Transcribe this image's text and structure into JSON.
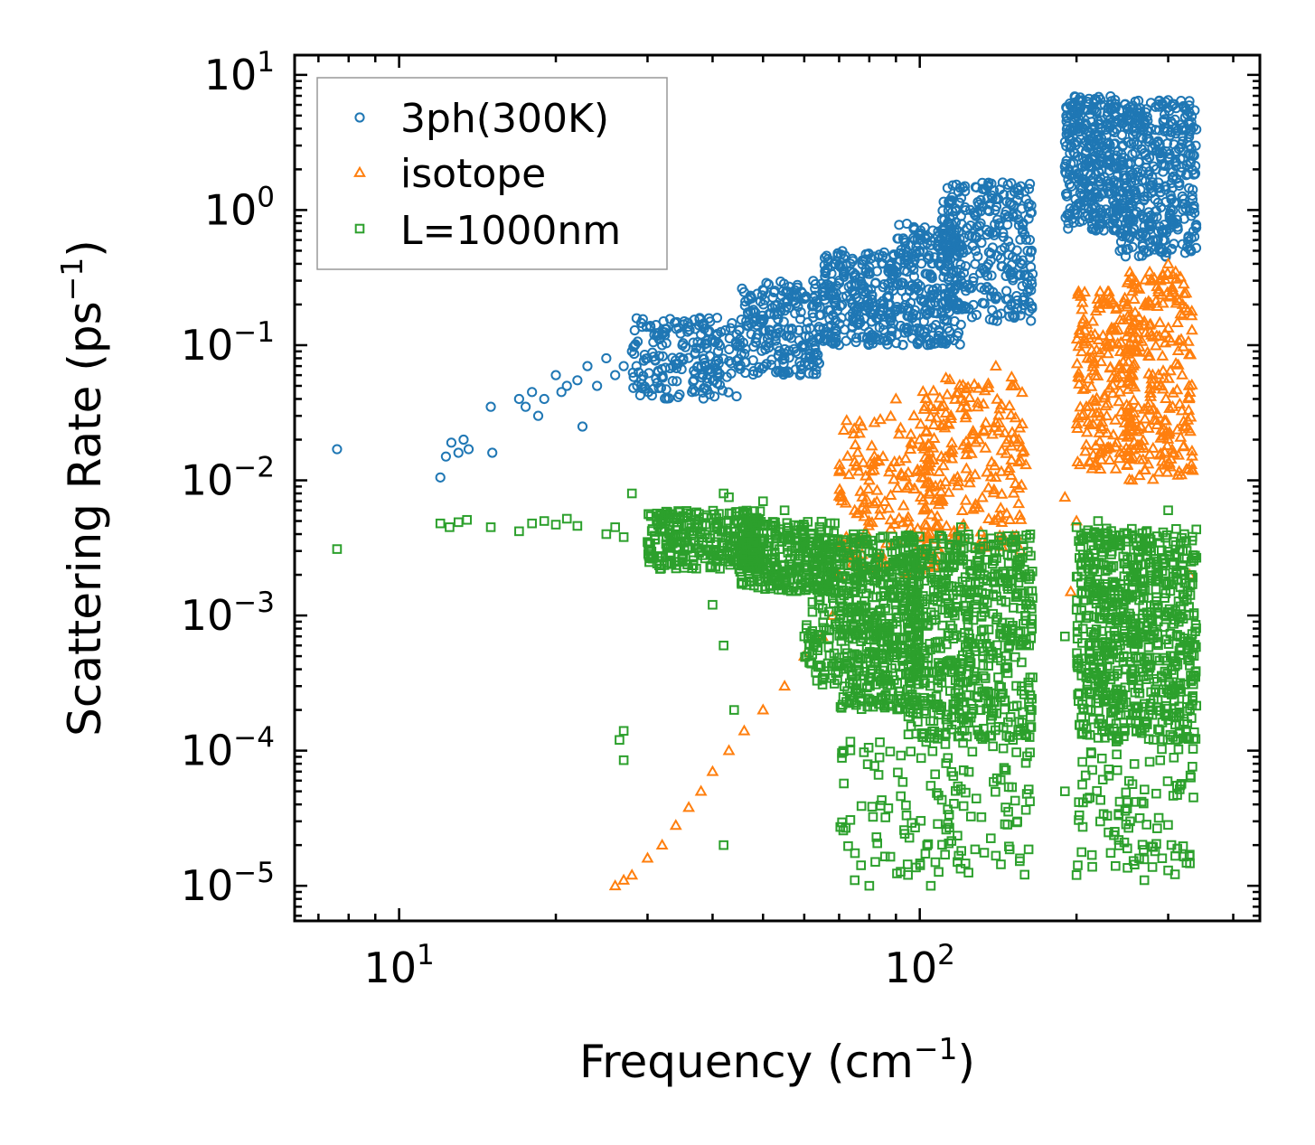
{
  "colors": {
    "3ph": "#1f77b4",
    "isotope": "#ff7f0e",
    "boundary": "#2ca02c",
    "axis": "#000000",
    "legend_border": "#999999"
  },
  "chart_data": {
    "type": "scatter",
    "xscale": "log",
    "yscale": "log",
    "xlim": [
      6.3,
      450
    ],
    "ylim": [
      5.5e-06,
      14
    ],
    "xlabel": "Frequency (cm",
    "xlabel_sup": "−1",
    "xlabel_end": ")",
    "ylabel": "Scattering Rate (ps",
    "ylabel_sup": "−1",
    "ylabel_end": ")",
    "x_ticks": [
      {
        "value": 10,
        "base": "10",
        "exp": "1"
      },
      {
        "value": 100,
        "base": "10",
        "exp": "2"
      }
    ],
    "y_ticks": [
      {
        "value": 10,
        "base": "10",
        "exp": "1"
      },
      {
        "value": 1,
        "base": "10",
        "exp": "0"
      },
      {
        "value": 0.1,
        "base": "10",
        "exp": "−1"
      },
      {
        "value": 0.01,
        "base": "10",
        "exp": "−2"
      },
      {
        "value": 0.001,
        "base": "10",
        "exp": "−3"
      },
      {
        "value": 0.0001,
        "base": "10",
        "exp": "−4"
      },
      {
        "value": 1e-05,
        "base": "10",
        "exp": "−5"
      }
    ],
    "legend_position": "top-left",
    "series": [
      {
        "name": "3ph(300K)",
        "marker": "circle",
        "color": "#1f77b4",
        "points": [
          [
            7.6,
            0.017
          ],
          [
            12,
            0.0105
          ],
          [
            12.3,
            0.015
          ],
          [
            12.6,
            0.019
          ],
          [
            13,
            0.016
          ],
          [
            13.3,
            0.02
          ],
          [
            13.6,
            0.017
          ],
          [
            15,
            0.035
          ],
          [
            15.1,
            0.016
          ],
          [
            17,
            0.04
          ],
          [
            17.5,
            0.035
          ],
          [
            18,
            0.045
          ],
          [
            18.5,
            0.03
          ],
          [
            19,
            0.04
          ],
          [
            20,
            0.06
          ],
          [
            20.5,
            0.045
          ],
          [
            21,
            0.05
          ],
          [
            22,
            0.055
          ],
          [
            22.5,
            0.025
          ],
          [
            23,
            0.07
          ],
          [
            24,
            0.05
          ],
          [
            25,
            0.08
          ],
          [
            26,
            0.06
          ],
          [
            27,
            0.07
          ],
          [
            28,
            0.09
          ],
          [
            30,
            0.08
          ],
          [
            32,
            0.1
          ],
          [
            35,
            0.1
          ],
          [
            38,
            0.12
          ],
          [
            40,
            0.11
          ],
          [
            45,
            0.13
          ],
          [
            50,
            0.15
          ],
          [
            55,
            0.18
          ],
          [
            60,
            0.22
          ],
          [
            65,
            0.25
          ],
          [
            70,
            0.3
          ],
          [
            75,
            0.33
          ],
          [
            80,
            0.35
          ],
          [
            85,
            0.4
          ],
          [
            90,
            0.38
          ],
          [
            95,
            0.45
          ],
          [
            100,
            0.5
          ],
          [
            105,
            0.55
          ],
          [
            110,
            0.6
          ],
          [
            115,
            0.7
          ],
          [
            120,
            0.9
          ],
          [
            125,
            1.0
          ],
          [
            130,
            1.1
          ],
          [
            135,
            1.0
          ],
          [
            140,
            1.2
          ],
          [
            145,
            1.3
          ],
          [
            150,
            1.1
          ],
          [
            155,
            1.4
          ],
          [
            160,
            1.2
          ],
          [
            190,
            2.1
          ],
          [
            195,
            2.2
          ],
          [
            200,
            5.0
          ],
          [
            205,
            6.5
          ],
          [
            210,
            5.5
          ],
          [
            220,
            3.5
          ],
          [
            230,
            2.5
          ],
          [
            240,
            1.8
          ],
          [
            250,
            1.5
          ],
          [
            260,
            1.3
          ],
          [
            270,
            1.2
          ],
          [
            280,
            1.6
          ],
          [
            290,
            2.5
          ],
          [
            300,
            6.5
          ],
          [
            310,
            4.0
          ],
          [
            320,
            3.5
          ],
          [
            330,
            3.0
          ]
        ],
        "bands": [
          {
            "xmin": 28,
            "xmax": 45,
            "ylo": 0.04,
            "yhi": 0.16,
            "n": 200
          },
          {
            "xmin": 45,
            "xmax": 65,
            "ylo": 0.06,
            "yhi": 0.3,
            "n": 220
          },
          {
            "xmin": 65,
            "xmax": 90,
            "ylo": 0.1,
            "yhi": 0.5,
            "n": 260
          },
          {
            "xmin": 90,
            "xmax": 120,
            "ylo": 0.1,
            "yhi": 0.8,
            "n": 260
          },
          {
            "xmin": 110,
            "xmax": 165,
            "ylo": 0.15,
            "yhi": 1.6,
            "n": 300
          },
          {
            "xmin": 190,
            "xmax": 240,
            "ylo": 0.7,
            "yhi": 7.0,
            "n": 320
          },
          {
            "xmin": 240,
            "xmax": 340,
            "ylo": 0.45,
            "yhi": 6.5,
            "n": 420
          }
        ]
      },
      {
        "name": "isotope",
        "marker": "triangle",
        "color": "#ff7f0e",
        "points": [
          [
            26,
            1e-05
          ],
          [
            27,
            1.1e-05
          ],
          [
            28,
            1.2e-05
          ],
          [
            30,
            1.6e-05
          ],
          [
            32,
            2e-05
          ],
          [
            34,
            2.8e-05
          ],
          [
            36,
            3.8e-05
          ],
          [
            38,
            5e-05
          ],
          [
            40,
            7e-05
          ],
          [
            43,
            0.0001
          ],
          [
            46,
            0.00014
          ],
          [
            50,
            0.0002
          ],
          [
            55,
            0.0003
          ],
          [
            60,
            0.0005
          ],
          [
            65,
            0.0007
          ],
          [
            68,
            0.001
          ],
          [
            70,
            0.002
          ],
          [
            75,
            0.006
          ],
          [
            80,
            0.01
          ],
          [
            85,
            0.015
          ],
          [
            90,
            0.04
          ],
          [
            100,
            0.02
          ],
          [
            105,
            0.035
          ],
          [
            110,
            0.015
          ],
          [
            120,
            0.04
          ],
          [
            130,
            0.02
          ],
          [
            140,
            0.07
          ],
          [
            150,
            0.05
          ],
          [
            155,
            0.02
          ],
          [
            190,
            0.0075
          ],
          [
            195,
            0.0015
          ],
          [
            200,
            0.005
          ],
          [
            205,
            0.03
          ],
          [
            210,
            0.08
          ],
          [
            215,
            0.15
          ],
          [
            230,
            0.1
          ],
          [
            250,
            0.2
          ],
          [
            270,
            0.15
          ],
          [
            290,
            0.3
          ],
          [
            300,
            0.4
          ],
          [
            310,
            0.35
          ],
          [
            320,
            0.2
          ],
          [
            330,
            0.002
          ]
        ],
        "bands": [
          {
            "xmin": 70,
            "xmax": 110,
            "ylo": 0.002,
            "yhi": 0.03,
            "n": 180
          },
          {
            "xmin": 100,
            "xmax": 160,
            "ylo": 0.003,
            "yhi": 0.06,
            "n": 200
          },
          {
            "xmin": 200,
            "xmax": 260,
            "ylo": 0.012,
            "yhi": 0.25,
            "n": 200
          },
          {
            "xmin": 250,
            "xmax": 335,
            "ylo": 0.01,
            "yhi": 0.35,
            "n": 240
          }
        ]
      },
      {
        "name": "L=1000nm",
        "marker": "square",
        "color": "#2ca02c",
        "points": [
          [
            7.6,
            0.0031
          ],
          [
            12,
            0.0048
          ],
          [
            12.5,
            0.0045
          ],
          [
            13,
            0.0049
          ],
          [
            13.5,
            0.0051
          ],
          [
            15,
            0.0045
          ],
          [
            17,
            0.0042
          ],
          [
            18,
            0.0048
          ],
          [
            19,
            0.005
          ],
          [
            20,
            0.0047
          ],
          [
            21,
            0.0052
          ],
          [
            22,
            0.0046
          ],
          [
            25,
            0.004
          ],
          [
            26,
            0.0045
          ],
          [
            27,
            0.0038
          ],
          [
            28,
            0.008
          ],
          [
            30,
            0.0035
          ],
          [
            32,
            0.0042
          ],
          [
            35,
            0.0025
          ],
          [
            38,
            0.003
          ],
          [
            40,
            0.0028
          ],
          [
            42,
            0.008
          ],
          [
            43,
            0.0075
          ],
          [
            45,
            0.0022
          ],
          [
            48,
            0.0018
          ],
          [
            50,
            0.007
          ],
          [
            55,
            0.006
          ],
          [
            60,
            0.0045
          ],
          [
            40,
            0.0012
          ],
          [
            42,
            0.0006
          ],
          [
            44,
            0.0002
          ],
          [
            27,
            0.00014
          ],
          [
            26.5,
            0.00012
          ],
          [
            27,
            8.5e-05
          ],
          [
            42,
            2e-05
          ],
          [
            60,
            0.0007
          ],
          [
            70,
            0.0015
          ],
          [
            80,
            0.003
          ],
          [
            90,
            0.0025
          ],
          [
            100,
            0.002
          ],
          [
            120,
            0.0045
          ],
          [
            150,
            0.0008
          ],
          [
            160,
            0.0012
          ],
          [
            190,
            0.0007
          ],
          [
            190,
            5e-05
          ],
          [
            200,
            0.0045
          ],
          [
            220,
            0.005
          ],
          [
            250,
            0.004
          ],
          [
            300,
            0.006
          ],
          [
            320,
            0.003
          ],
          [
            330,
            1.7e-05
          ],
          [
            75,
            1.1e-05
          ],
          [
            80,
            1e-05
          ],
          [
            105,
            1e-05
          ],
          [
            200,
            1.2e-05
          ],
          [
            270,
            1.1e-05
          ],
          [
            300,
            1.3e-05
          ]
        ],
        "bands": [
          {
            "xmin": 30,
            "xmax": 50,
            "ylo": 0.0022,
            "yhi": 0.006,
            "n": 280
          },
          {
            "xmin": 45,
            "xmax": 70,
            "ylo": 0.0015,
            "yhi": 0.005,
            "n": 300
          },
          {
            "xmin": 60,
            "xmax": 70,
            "ylo": 0.0003,
            "yhi": 0.004,
            "n": 100
          },
          {
            "xmin": 70,
            "xmax": 100,
            "ylo": 0.0002,
            "yhi": 0.004,
            "n": 500
          },
          {
            "xmin": 95,
            "xmax": 165,
            "ylo": 0.00012,
            "yhi": 0.004,
            "n": 620
          },
          {
            "xmin": 70,
            "xmax": 165,
            "ylo": 1.2e-05,
            "yhi": 0.00012,
            "n": 140
          },
          {
            "xmin": 200,
            "xmax": 340,
            "ylo": 0.00012,
            "yhi": 0.0045,
            "n": 760
          },
          {
            "xmin": 200,
            "xmax": 340,
            "ylo": 1.2e-05,
            "yhi": 0.00012,
            "n": 100
          }
        ]
      }
    ]
  }
}
